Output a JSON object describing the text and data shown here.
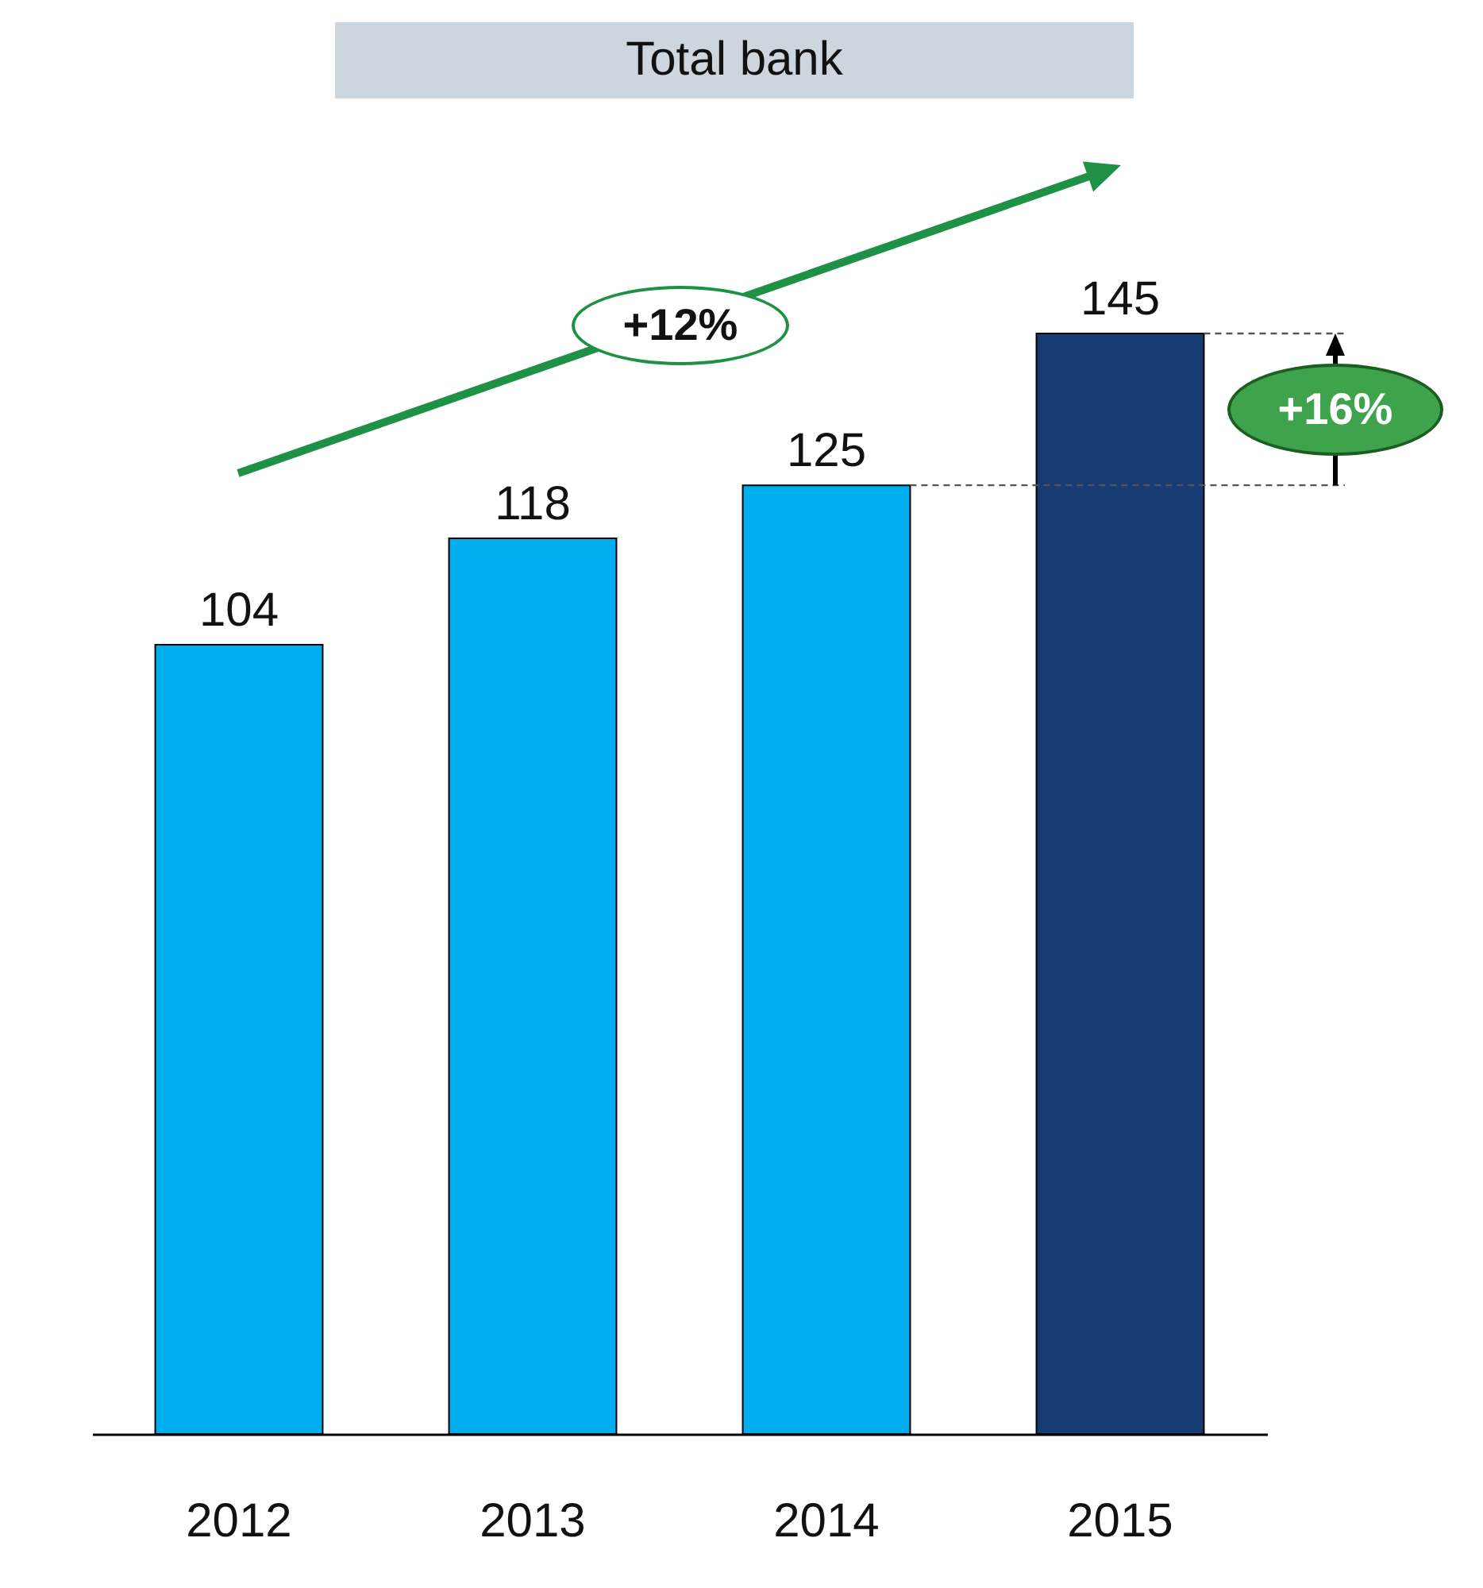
{
  "chart_data": {
    "type": "bar",
    "title": "Total bank",
    "categories": [
      "2012",
      "2013",
      "2014",
      "2015"
    ],
    "values": [
      104,
      118,
      125,
      145
    ],
    "colors": [
      "#00adef",
      "#00adef",
      "#00adef",
      "#173c73"
    ],
    "data_labels": true,
    "annotations": [
      "+12%",
      "+16%"
    ]
  }
}
